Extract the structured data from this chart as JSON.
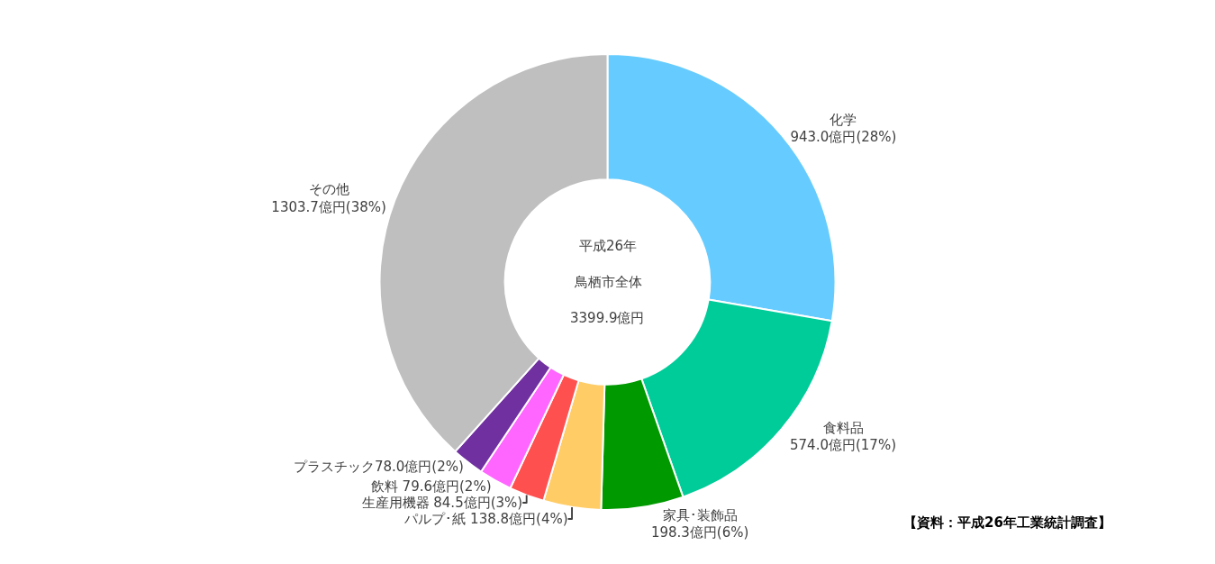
{
  "chart_data": {
    "type": "donut",
    "categories": [
      "化学",
      "食料品",
      "家具･装飾品",
      "パルプ･紙",
      "生産用機器",
      "飲料",
      "プラスチック",
      "その他"
    ],
    "values": [
      943.0,
      574.0,
      198.3,
      138.8,
      84.5,
      79.6,
      78.0,
      1303.7
    ],
    "colors": [
      "#66ccff",
      "#00cc99",
      "#009900",
      "#ffcc66",
      "#ff5050",
      "#ff66ff",
      "#7030a0",
      "#bfbfbf"
    ],
    "value_labels": [
      "\n943.0億円(28%)",
      "\n574.0億円(17%)",
      "\n198.3億円(6%)",
      " 138.8億円(4%)",
      " 84.5億円(3%)",
      " 79.6億円(2%)",
      "78.0億円(2%)",
      "\n1303.7億円(38%)"
    ],
    "annotations": [
      "平成26年",
      "鳥栖市全体",
      "3399.9億円",
      "【資料：平成26年工業統計調査】"
    ],
    "legend": false
  }
}
